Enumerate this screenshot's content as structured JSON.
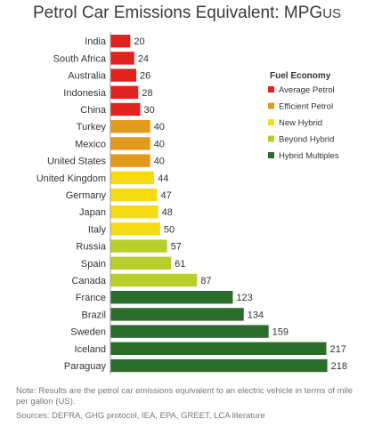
{
  "chart_data": {
    "type": "bar",
    "orientation": "horizontal",
    "title": "Petrol Car Emissions Equivalent: MPG",
    "title_subscript": "US",
    "categories": [
      "India",
      "South Africa",
      "Australia",
      "Indonesia",
      "China",
      "Turkey",
      "Mexico",
      "United States",
      "United Kingdom",
      "Germany",
      "Japan",
      "Italy",
      "Russia",
      "Spain",
      "Canada",
      "France",
      "Brazil",
      "Sweden",
      "Iceland",
      "Paraguay"
    ],
    "values": [
      20,
      24,
      26,
      28,
      30,
      40,
      40,
      40,
      44,
      47,
      48,
      50,
      57,
      61,
      87,
      123,
      134,
      159,
      217,
      218
    ],
    "groups": [
      0,
      0,
      0,
      0,
      0,
      1,
      1,
      1,
      2,
      2,
      2,
      2,
      3,
      3,
      3,
      4,
      4,
      4,
      4,
      4
    ],
    "xlim": [
      0,
      230
    ],
    "grid": false,
    "legend": {
      "title": "Fuel Economy",
      "placement": "right",
      "items": [
        {
          "label": "Average Petrol",
          "color": "#e0231f"
        },
        {
          "label": "Efficient Petrol",
          "color": "#e09b1a"
        },
        {
          "label": "New Hybrid",
          "color": "#f7dc14"
        },
        {
          "label": "Beyond Hybrid",
          "color": "#b8cf2a"
        },
        {
          "label": "Hybrid Multiples",
          "color": "#2b6e2b"
        }
      ]
    }
  },
  "note": "Note:  Results are the petrol car emissions equivalent to an electric vehicle in terms of mile per gallon (US).",
  "sources": "Sources: DEFRA, GHG protocol, IEA, EPA, GREET, LCA literature"
}
